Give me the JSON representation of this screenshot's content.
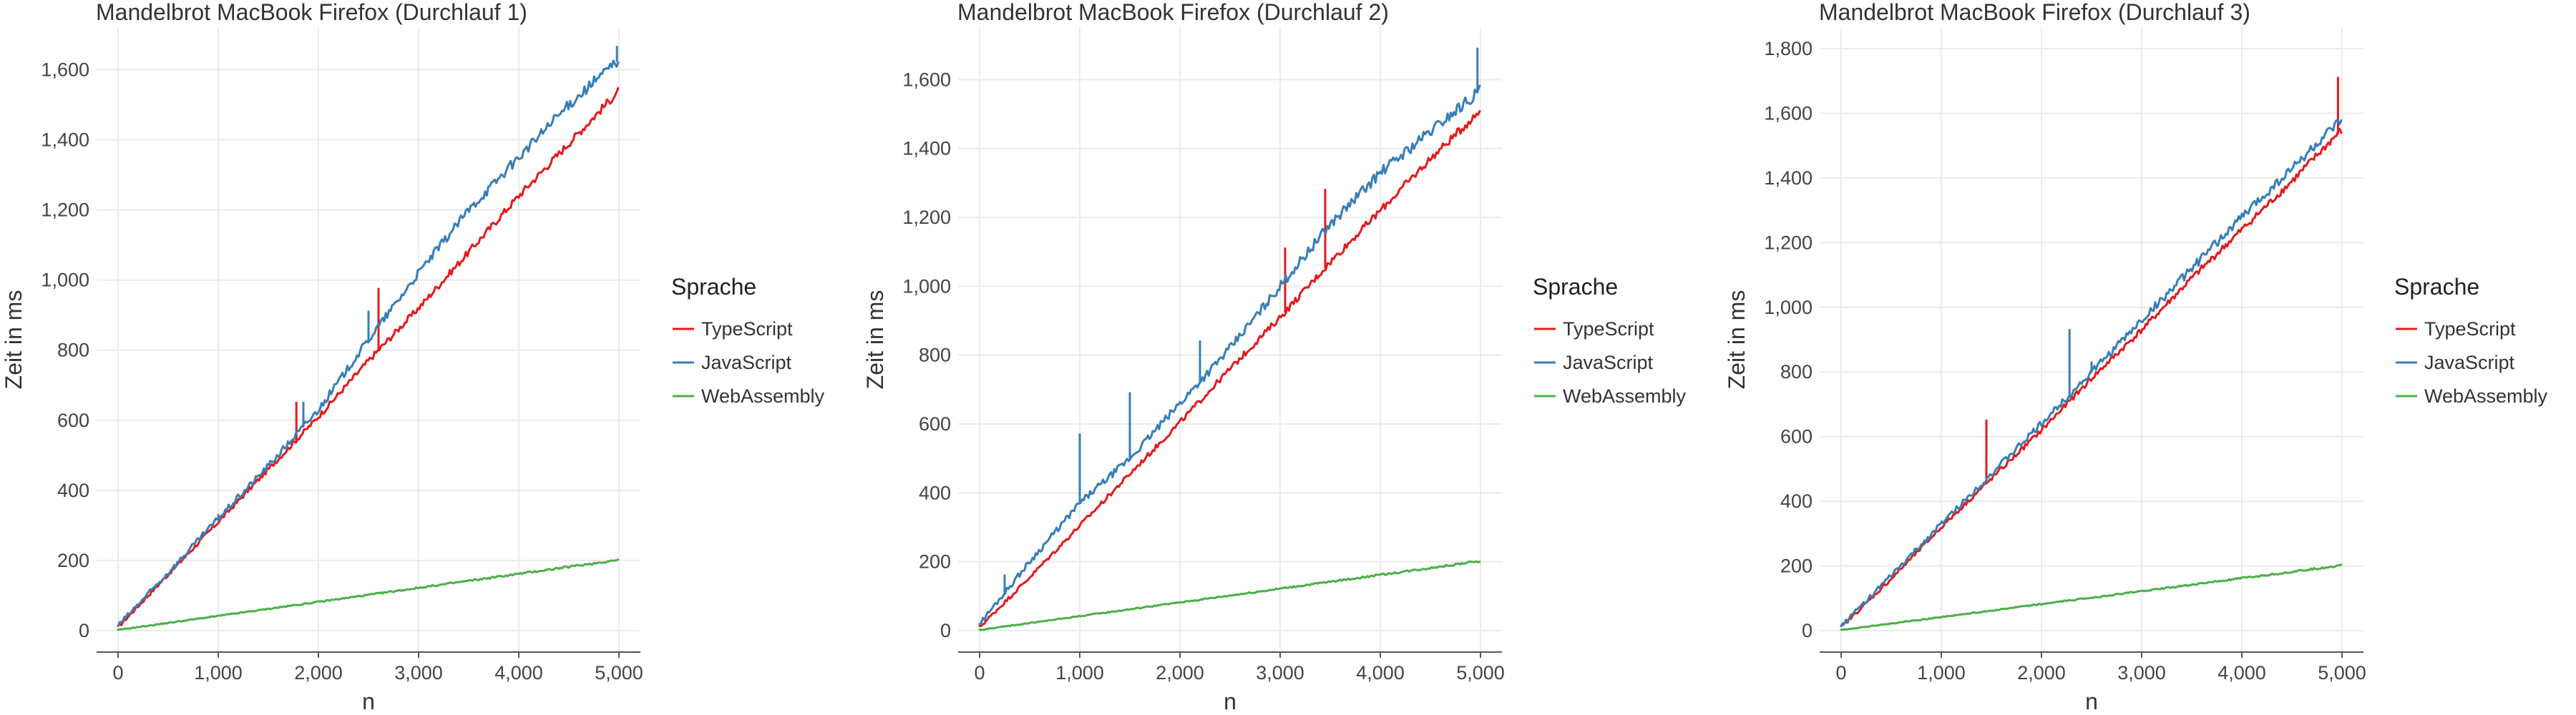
{
  "colors": {
    "TypeScript": "#e41a1c",
    "JavaScript": "#377eb8",
    "WebAssembly": "#4daf4a",
    "grid": "#ebebeb",
    "axis": "#555555"
  },
  "chart_data": [
    {
      "type": "line",
      "title": "Mandelbrot MacBook Firefox (Durchlauf 1)",
      "xlabel": "n",
      "ylabel": "Zeit in ms",
      "xlim": [
        0,
        5000
      ],
      "ylim": [
        0,
        1660
      ],
      "xticks": [
        0,
        1000,
        2000,
        3000,
        4000,
        5000
      ],
      "xtick_labels": [
        "0",
        "1,000",
        "2,000",
        "3,000",
        "4,000",
        "5,000"
      ],
      "yticks": [
        0,
        200,
        400,
        600,
        800,
        1000,
        1200,
        1400,
        1600
      ],
      "ytick_labels": [
        "0",
        "200",
        "400",
        "600",
        "800",
        "1,000",
        "1,200",
        "1,400",
        "1,600"
      ],
      "grid": true,
      "legend": {
        "title": "Sprache",
        "placement": "right"
      },
      "series": [
        {
          "name": "TypeScript",
          "color": "#e41a1c",
          "noise": 12,
          "x": [
            0,
            500,
            1000,
            1500,
            2000,
            2500,
            3000,
            3500,
            4000,
            4500,
            5000
          ],
          "y": [
            10,
            160,
            310,
            460,
            610,
            770,
            920,
            1080,
            1240,
            1390,
            1540
          ],
          "spikes": [
            [
              2600,
              975
            ],
            [
              1780,
              650
            ]
          ]
        },
        {
          "name": "JavaScript",
          "color": "#377eb8",
          "noise": 16,
          "x": [
            0,
            500,
            1000,
            1500,
            2000,
            2500,
            3000,
            3500,
            4000,
            4500,
            5000
          ],
          "y": [
            15,
            165,
            320,
            470,
            630,
            830,
            1020,
            1200,
            1350,
            1500,
            1630
          ],
          "spikes": [
            [
              2500,
              910
            ],
            [
              1000,
              330
            ],
            [
              1850,
              650
            ],
            [
              4980,
              1665
            ]
          ]
        },
        {
          "name": "WebAssembly",
          "color": "#4daf4a",
          "noise": 3,
          "x": [
            0,
            1000,
            2000,
            3000,
            4000,
            5000
          ],
          "y": [
            2,
            42,
            82,
            122,
            162,
            202
          ],
          "spikes": []
        }
      ]
    },
    {
      "type": "line",
      "title": "Mandelbrot MacBook Firefox (Durchlauf 2)",
      "xlabel": "n",
      "ylabel": "Zeit in ms",
      "xlim": [
        0,
        5000
      ],
      "ylim": [
        0,
        1690
      ],
      "xticks": [
        0,
        1000,
        2000,
        3000,
        4000,
        5000
      ],
      "xtick_labels": [
        "0",
        "1,000",
        "2,000",
        "3,000",
        "4,000",
        "5,000"
      ],
      "yticks": [
        0,
        200,
        400,
        600,
        800,
        1000,
        1200,
        1400,
        1600
      ],
      "ytick_labels": [
        "0",
        "200",
        "400",
        "600",
        "800",
        "1,000",
        "1,200",
        "1,400",
        "1,600"
      ],
      "grid": true,
      "legend": {
        "title": "Sprache",
        "placement": "right"
      },
      "series": [
        {
          "name": "TypeScript",
          "color": "#e41a1c",
          "noise": 12,
          "x": [
            0,
            500,
            1000,
            1500,
            2000,
            2500,
            3000,
            3500,
            4000,
            4500,
            5000
          ],
          "y": [
            10,
            155,
            305,
            455,
            605,
            760,
            910,
            1070,
            1220,
            1370,
            1510
          ],
          "spikes": [
            [
              3050,
              1110
            ],
            [
              3450,
              1280
            ]
          ]
        },
        {
          "name": "JavaScript",
          "color": "#377eb8",
          "noise": 18,
          "x": [
            0,
            500,
            1000,
            1500,
            2000,
            2500,
            3000,
            3500,
            4000,
            4500,
            5000
          ],
          "y": [
            20,
            200,
            370,
            500,
            660,
            820,
            1000,
            1180,
            1330,
            1450,
            1570
          ],
          "spikes": [
            [
              1000,
              570
            ],
            [
              1500,
              690
            ],
            [
              2200,
              840
            ],
            [
              250,
              160
            ],
            [
              4970,
              1690
            ]
          ]
        },
        {
          "name": "WebAssembly",
          "color": "#4daf4a",
          "noise": 3,
          "x": [
            0,
            1000,
            2000,
            3000,
            4000,
            5000
          ],
          "y": [
            2,
            42,
            82,
            122,
            162,
            202
          ],
          "spikes": []
        }
      ]
    },
    {
      "type": "line",
      "title": "Mandelbrot MacBook Firefox (Durchlauf 3)",
      "xlabel": "n",
      "ylabel": "Zeit in ms",
      "xlim": [
        0,
        5000
      ],
      "ylim": [
        0,
        1800
      ],
      "xticks": [
        0,
        1000,
        2000,
        3000,
        4000,
        5000
      ],
      "xtick_labels": [
        "0",
        "1,000",
        "2,000",
        "3,000",
        "4,000",
        "5,000"
      ],
      "yticks": [
        0,
        200,
        400,
        600,
        800,
        1000,
        1200,
        1400,
        1600,
        1800
      ],
      "ytick_labels": [
        "0",
        "200",
        "400",
        "600",
        "800",
        "1,000",
        "1,200",
        "1,400",
        "1,600",
        "1,800"
      ],
      "grid": true,
      "legend": {
        "title": "Sprache",
        "placement": "right"
      },
      "series": [
        {
          "name": "TypeScript",
          "color": "#e41a1c",
          "noise": 12,
          "x": [
            0,
            500,
            1000,
            1500,
            2000,
            2500,
            3000,
            3500,
            4000,
            4500,
            5000
          ],
          "y": [
            10,
            160,
            320,
            470,
            620,
            780,
            930,
            1090,
            1240,
            1390,
            1550
          ],
          "spikes": [
            [
              1450,
              650
            ],
            [
              4960,
              1710
            ]
          ]
        },
        {
          "name": "JavaScript",
          "color": "#377eb8",
          "noise": 16,
          "x": [
            0,
            500,
            1000,
            1500,
            2000,
            2500,
            3000,
            3500,
            4000,
            4500,
            5000
          ],
          "y": [
            15,
            170,
            330,
            485,
            640,
            800,
            960,
            1120,
            1280,
            1430,
            1580
          ],
          "spikes": [
            [
              2280,
              930
            ],
            [
              2500,
              830
            ]
          ]
        },
        {
          "name": "WebAssembly",
          "color": "#4daf4a",
          "noise": 3,
          "x": [
            0,
            1000,
            2000,
            3000,
            4000,
            5000
          ],
          "y": [
            2,
            42,
            82,
            122,
            162,
            202
          ],
          "spikes": []
        }
      ]
    }
  ]
}
